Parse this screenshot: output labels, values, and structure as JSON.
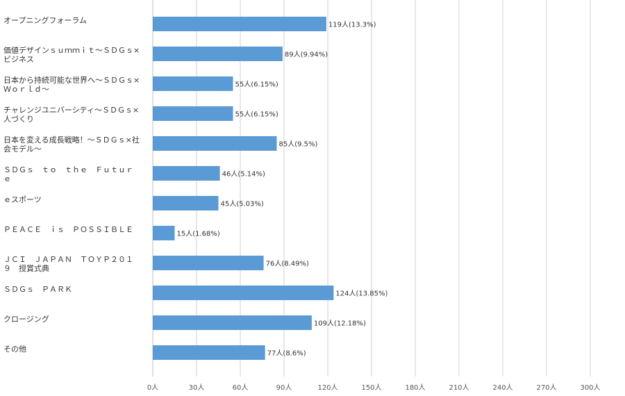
{
  "colors": {
    "bar": "#5b9bd5",
    "grid": "#d0d0d0",
    "axis": "#bfbfbf",
    "text": "#333333"
  },
  "chart_data": {
    "type": "bar",
    "orientation": "horizontal",
    "title": "",
    "xlabel": "",
    "ylabel": "",
    "xlim": [
      0,
      300
    ],
    "grid": true,
    "legend": "none",
    "unit_suffix": "人",
    "x_ticks": [
      "0人",
      "30人",
      "60人",
      "90人",
      "120人",
      "150人",
      "180人",
      "210人",
      "240人",
      "270人",
      "300人"
    ],
    "x_tick_values": [
      0,
      30,
      60,
      90,
      120,
      150,
      180,
      210,
      240,
      270,
      300
    ],
    "categories": [
      [
        "オープニングフォーラム"
      ],
      [
        "価値デザインｓｕｍｍｉｔ～ＳＤＧｓ×",
        "ビジネス"
      ],
      [
        "日本から持続可能な世界へ～ＳＤＧｓ×",
        "Ｗｏｒｌｄ～"
      ],
      [
        "チャレンジユニバーシティ～ＳＤＧｓ×",
        "人づくり"
      ],
      [
        "日本を変える成長戦略！～ＳＤＧｓ×社",
        "会モデル～"
      ],
      [
        "ＳＤＧｓ　ｔｏ　ｔｈｅ　Ｆｕｔｕｒ",
        "ｅ"
      ],
      [
        "ｅスポーツ"
      ],
      [
        "ＰＥＡＣＥ　ｉｓ　ＰＯＳＳＩＢＬＥ"
      ],
      [
        "ＪＣＩ　ＪＡＰＡＮ　ＴＯＹＰ２０１",
        "９　授賞式典"
      ],
      [
        "ＳＤＧｓ　ＰＡＲＫ"
      ],
      [
        "クロージング"
      ],
      [
        "その他"
      ]
    ],
    "values": [
      119,
      89,
      55,
      55,
      85,
      46,
      45,
      15,
      76,
      124,
      109,
      77
    ],
    "data_labels": [
      "119人(13.3%)",
      "89人(9.94%)",
      "55人(6.15%)",
      "55人(6.15%)",
      "85人(9.5%)",
      "46人(5.14%)",
      "45人(5.03%)",
      "15人(1.68%)",
      "76人(8.49%)",
      "124人(13.85%)",
      "109人(12.18%)",
      "77人(8.6%)"
    ]
  }
}
